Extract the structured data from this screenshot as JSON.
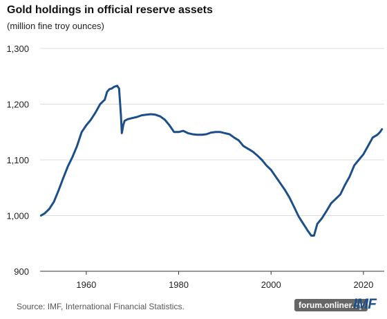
{
  "header": {
    "title": "Gold holdings in official reserve assets",
    "subtitle": "(million fine troy ounces)"
  },
  "footer": {
    "source": "Source: IMF, International Financial Statistics.",
    "watermark": "forum.onliner.by",
    "logo_text": "IMF"
  },
  "colors": {
    "line": "#1c4f8a",
    "grid": "#dcdcdc",
    "logo": "#1c4f8a"
  },
  "chart_data": {
    "type": "line",
    "title": "Gold holdings in official reserve assets",
    "subtitle": "(million fine troy ounces)",
    "xlim": [
      1950,
      2024.5
    ],
    "ylim": [
      900,
      1300
    ],
    "x_ticks": [
      1960,
      1980,
      2000,
      2020
    ],
    "y_ticks": [
      900,
      1000,
      1100,
      1200,
      1300
    ],
    "y_tick_labels": [
      "900",
      "1,000",
      "1,100",
      "1,200",
      "1,300"
    ],
    "grid": "horizontal",
    "series": [
      {
        "x": [
          1950.2,
          1951,
          1952,
          1953,
          1954,
          1955,
          1956,
          1957,
          1958,
          1959,
          1960,
          1961,
          1962,
          1963,
          1964,
          1964.5,
          1965,
          1965.5,
          1966,
          1966.7,
          1967.1,
          1967.5,
          1967.7,
          1968,
          1968.3,
          1969,
          1970,
          1971,
          1972,
          1973,
          1974,
          1975,
          1976,
          1977,
          1978,
          1979,
          1980,
          1981,
          1982,
          1983,
          1984,
          1985,
          1986,
          1987,
          1988,
          1989,
          1990,
          1991,
          1992,
          1993,
          1994,
          1995,
          1996,
          1997,
          1998,
          1999,
          2000,
          2001,
          2002,
          2003,
          2004,
          2005,
          2006,
          2007,
          2008,
          2008.7,
          2009.3,
          2010,
          2011,
          2012,
          2013,
          2014,
          2015,
          2016,
          2017,
          2018,
          2019,
          2020,
          2021,
          2022,
          2023,
          2023.6,
          2024
        ],
        "y": [
          1000,
          1004,
          1012,
          1025,
          1045,
          1067,
          1088,
          1105,
          1125,
          1150,
          1162,
          1172,
          1185,
          1200,
          1208,
          1222,
          1227,
          1228,
          1231,
          1233,
          1228,
          1180,
          1148,
          1162,
          1170,
          1173,
          1175,
          1177,
          1180,
          1181,
          1182,
          1181,
          1178,
          1172,
          1162,
          1150,
          1150,
          1152,
          1148,
          1146,
          1145,
          1145,
          1146,
          1149,
          1150,
          1150,
          1148,
          1146,
          1140,
          1135,
          1125,
          1120,
          1115,
          1108,
          1100,
          1090,
          1082,
          1070,
          1058,
          1046,
          1032,
          1015,
          998,
          985,
          972,
          964,
          964,
          985,
          995,
          1008,
          1022,
          1030,
          1038,
          1055,
          1070,
          1090,
          1100,
          1110,
          1125,
          1140,
          1145,
          1150,
          1155
        ]
      }
    ]
  }
}
